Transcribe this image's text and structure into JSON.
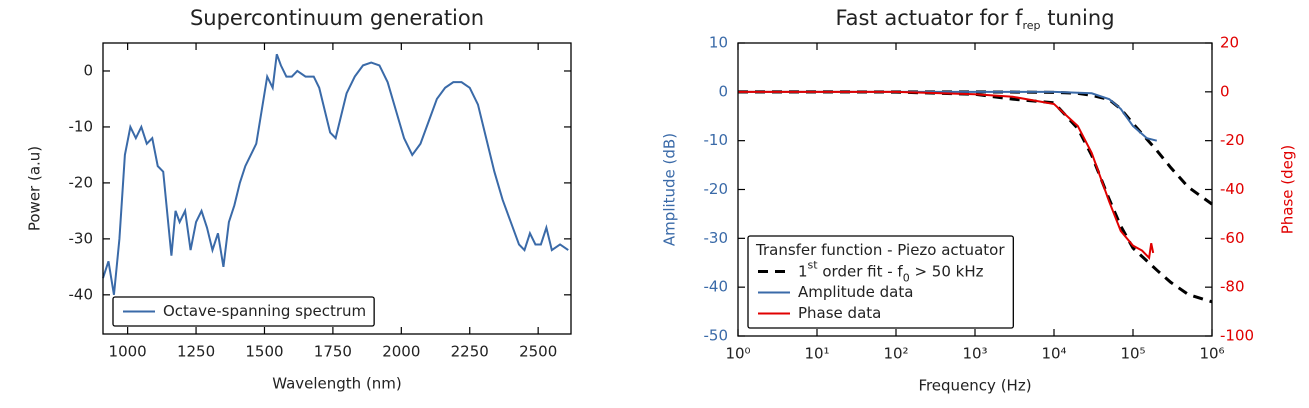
{
  "chart_data": [
    {
      "type": "line",
      "title": "Supercontinuum generation",
      "xlabel": "Wavelength (nm)",
      "ylabel": "Power (a.u)",
      "xlim": [
        910,
        2620
      ],
      "ylim": [
        -47,
        5
      ],
      "xticks": [
        1000,
        1250,
        1500,
        1750,
        2000,
        2250,
        2500
      ],
      "yticks": [
        -40,
        -30,
        -20,
        -10,
        0
      ],
      "legend": {
        "position": "lower left"
      },
      "series": [
        {
          "name": "Octave-spanning spectrum",
          "color": "#3a6aa8",
          "x": [
            910,
            930,
            950,
            970,
            990,
            1010,
            1030,
            1050,
            1070,
            1090,
            1110,
            1130,
            1150,
            1160,
            1175,
            1190,
            1210,
            1230,
            1250,
            1270,
            1290,
            1310,
            1330,
            1350,
            1370,
            1390,
            1410,
            1430,
            1450,
            1470,
            1490,
            1510,
            1530,
            1545,
            1560,
            1580,
            1600,
            1620,
            1650,
            1680,
            1700,
            1720,
            1740,
            1760,
            1780,
            1800,
            1830,
            1860,
            1890,
            1920,
            1950,
            1980,
            2010,
            2040,
            2070,
            2100,
            2130,
            2160,
            2190,
            2220,
            2250,
            2280,
            2310,
            2340,
            2370,
            2400,
            2430,
            2450,
            2470,
            2490,
            2510,
            2530,
            2550,
            2580,
            2610
          ],
          "values": [
            -37,
            -34,
            -40,
            -30,
            -15,
            -10,
            -12,
            -10,
            -13,
            -12,
            -17,
            -18,
            -28,
            -33,
            -25,
            -27,
            -25,
            -32,
            -27,
            -25,
            -28,
            -32,
            -29,
            -35,
            -27,
            -24,
            -20,
            -17,
            -15,
            -13,
            -7,
            -1,
            -3,
            3,
            1,
            -1,
            -1,
            0,
            -1,
            -1,
            -3,
            -7,
            -11,
            -12,
            -8,
            -4,
            -1,
            1,
            1.5,
            1,
            -2,
            -7,
            -12,
            -15,
            -13,
            -9,
            -5,
            -3,
            -2,
            -2,
            -3,
            -6,
            -12,
            -18,
            -23,
            -27,
            -31,
            -32,
            -29,
            -31,
            -31,
            -28,
            -32,
            -31,
            -32
          ]
        }
      ]
    },
    {
      "type": "line",
      "title": [
        "Fast actuator for f",
        {
          "text": "rep",
          "script": "sub"
        },
        " tuning"
      ],
      "xlabel": "Frequency (Hz)",
      "ylabel": "Amplitude (dB)",
      "y2label": "Phase (deg)",
      "y_color": "#3a6aa8",
      "y2_color": "#e00000",
      "xlog": true,
      "xlim": [
        1,
        1000000
      ],
      "ylim": [
        -50,
        10
      ],
      "y2lim": [
        -100,
        20
      ],
      "xticks": [
        {
          "value": 1,
          "label": "10⁰"
        },
        {
          "value": 10,
          "label": "10¹"
        },
        {
          "value": 100,
          "label": "10²"
        },
        {
          "value": 1000,
          "label": "10³"
        },
        {
          "value": 10000,
          "label": "10⁴"
        },
        {
          "value": 100000,
          "label": "10⁵"
        },
        {
          "value": 1000000,
          "label": "10⁶"
        }
      ],
      "yticks": [
        -50,
        -40,
        -30,
        -20,
        -10,
        0,
        10
      ],
      "y2ticks": [
        -100,
        -80,
        -60,
        -40,
        -20,
        0,
        20
      ],
      "legend": {
        "title": "Transfer function - Piezo actuator",
        "position": "lower left"
      },
      "series": [
        {
          "name": [
            "1",
            {
              "text": "st",
              "script": "super"
            },
            " order fit - f",
            {
              "text": "0",
              "script": "sub"
            },
            " > 50 kHz"
          ],
          "color": "#000000",
          "dash": true,
          "x": [
            1,
            10,
            100,
            1000,
            10000,
            20000,
            30000,
            50000,
            70000,
            100000,
            200000,
            300000,
            500000,
            1000000
          ],
          "values": [
            0,
            0,
            0,
            0,
            -0.1,
            -0.3,
            -0.7,
            -1.6,
            -3.5,
            -6.5,
            -12,
            -15.5,
            -19.5,
            -23
          ]
        },
        {
          "color": "#000000",
          "dash": true,
          "axis": "y2",
          "x": [
            1,
            10,
            100,
            1000,
            3000,
            10000,
            20000,
            30000,
            50000,
            70000,
            100000,
            200000,
            300000,
            500000,
            1000000
          ],
          "values": [
            0,
            0,
            -0.1,
            -1,
            -3,
            -4.5,
            -15,
            -26,
            -44,
            -55,
            -64,
            -73,
            -78,
            -83,
            -86
          ]
        },
        {
          "name": "Amplitude data",
          "color": "#3a6aa8",
          "x": [
            1,
            10,
            100,
            1000,
            10000,
            30000,
            50000,
            70000,
            100000,
            150000,
            200000
          ],
          "values": [
            0,
            0,
            0,
            0,
            0,
            -0.3,
            -1.5,
            -3.5,
            -7,
            -9.5,
            -10
          ]
        },
        {
          "name": "Phase data",
          "color": "#e00000",
          "axis": "y2",
          "x": [
            1,
            10,
            100,
            1000,
            3000,
            10000,
            20000,
            30000,
            50000,
            70000,
            100000,
            130000,
            160000,
            170000,
            180000
          ],
          "values": [
            0,
            0,
            0,
            -1,
            -2,
            -5,
            -14,
            -25,
            -45,
            -57,
            -63,
            -65,
            -68,
            -62,
            -66
          ]
        }
      ]
    }
  ]
}
